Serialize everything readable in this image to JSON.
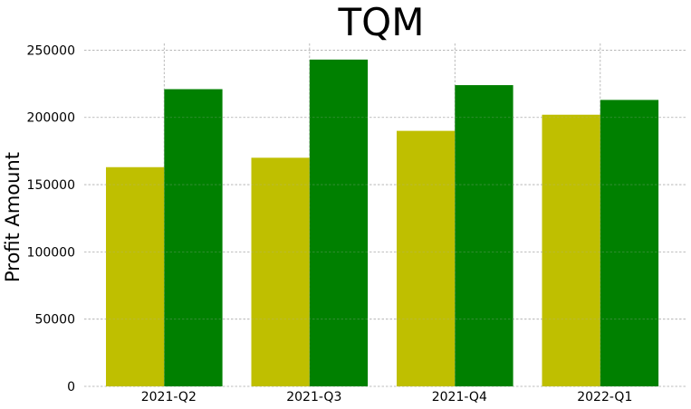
{
  "chart_data": {
    "type": "bar",
    "title": "TQM",
    "xlabel": "",
    "ylabel": "Profit Amount",
    "categories": [
      "2021-Q2",
      "2021-Q3",
      "2021-Q4",
      "2022-Q1"
    ],
    "series": [
      {
        "color": "#bfbf00",
        "values": [
          163000,
          170000,
          190000,
          202000
        ]
      },
      {
        "color": "#008000",
        "values": [
          221000,
          243000,
          224000,
          213000
        ]
      }
    ],
    "ylim": [
      0,
      255000
    ],
    "yticks": [
      0,
      50000,
      100000,
      150000,
      200000,
      250000
    ],
    "ytick_labels": [
      "0",
      "50000",
      "100000",
      "150000",
      "200000",
      "250000"
    ],
    "grid": true,
    "legend": "none"
  }
}
